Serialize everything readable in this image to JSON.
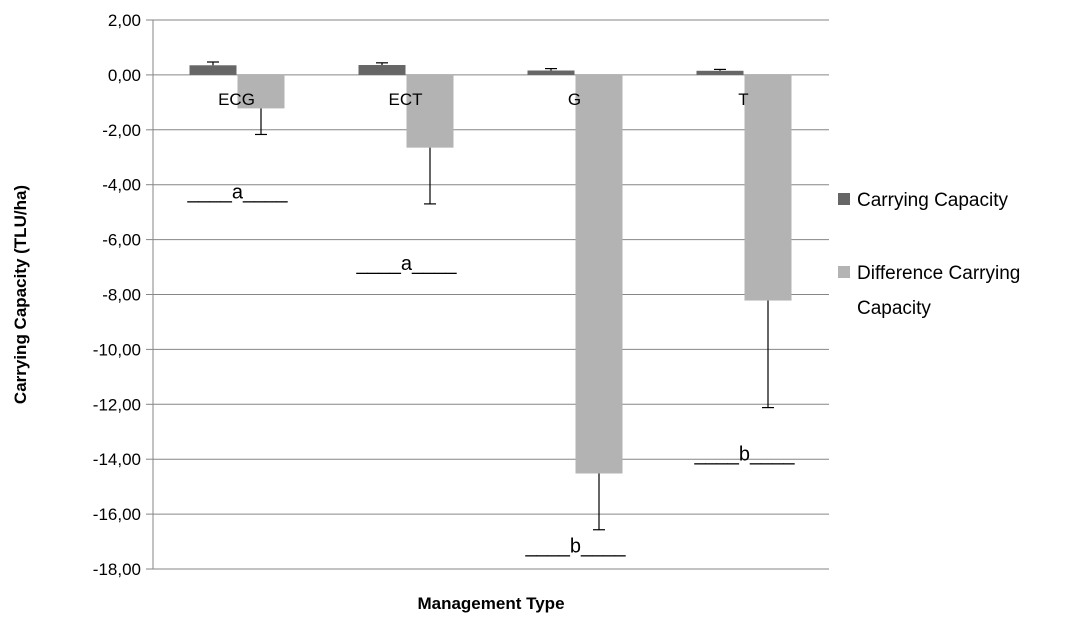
{
  "chart_data": {
    "type": "bar",
    "title": "",
    "xlabel": "Management Type",
    "ylabel": "Carrying Capacity (TLU/ha)",
    "categories": [
      "ECG",
      "ECT",
      "G",
      "T"
    ],
    "ylim": [
      -18,
      2
    ],
    "ytick_step": 2,
    "ytick_labels": [
      "2,00",
      "0,00",
      "-2,00",
      "-4,00",
      "-6,00",
      "-8,00",
      "-10,00",
      "-12,00",
      "-14,00",
      "-16,00",
      "-18,00"
    ],
    "grid": true,
    "legend_position": "right",
    "series": [
      {
        "name": "Carrying Capacity",
        "color": "#666666",
        "values": [
          0.35,
          0.36,
          0.16,
          0.15
        ],
        "error": [
          0.12,
          0.08,
          0.07,
          0.05
        ]
      },
      {
        "name": "Difference Carrying Capacity",
        "color": "#b3b3b3",
        "values": [
          -1.22,
          -2.65,
          -14.52,
          -8.22
        ],
        "error": [
          0.95,
          2.05,
          2.05,
          3.9
        ]
      }
    ],
    "annotations": [
      {
        "text": "____a____",
        "category": "ECG",
        "y": -4.5
      },
      {
        "text": "____a____",
        "category": "ECT",
        "y": -7.1
      },
      {
        "text": "____b____",
        "category": "G",
        "y": -17.4
      },
      {
        "text": "____b____",
        "category": "T",
        "y": -14.05
      }
    ]
  }
}
